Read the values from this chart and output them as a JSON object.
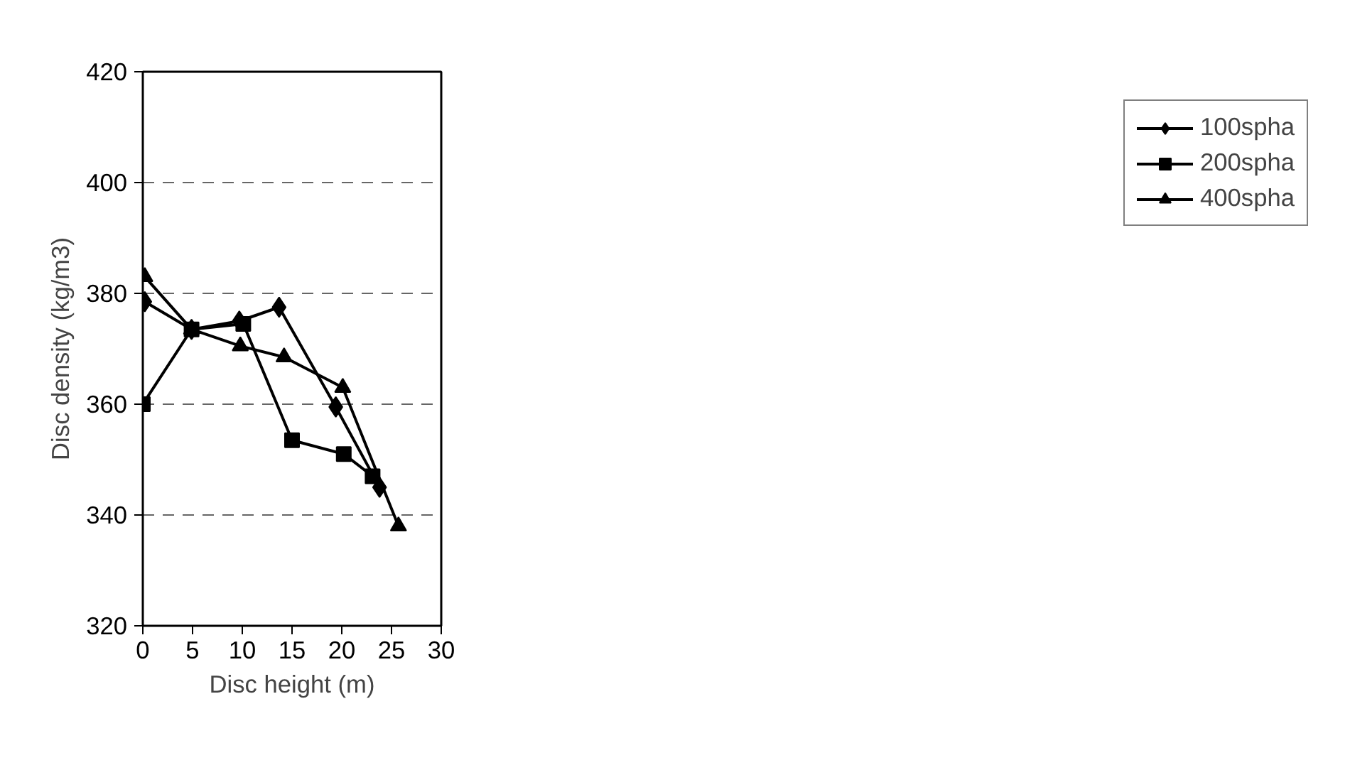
{
  "chart_data": {
    "type": "line",
    "xlabel": "Disc height (m)",
    "ylabel": "Disc density (kg/m3)",
    "xlim": [
      0,
      30
    ],
    "xticks": [
      0,
      5,
      10,
      15,
      20,
      25,
      30
    ],
    "ylim": [
      320,
      420
    ],
    "yticks": [
      320,
      340,
      360,
      380,
      400,
      420
    ],
    "grid": "y",
    "legend": "right",
    "line_style": "solid",
    "series": [
      {
        "name": "100spha",
        "color": "#000000",
        "marker": "diamond",
        "x": [
          0.2,
          4.9,
          9.7,
          13.7,
          19.4,
          23.8
        ],
        "values": [
          378.5,
          373.5,
          375,
          377.5,
          359.5,
          345
        ]
      },
      {
        "name": "200spha",
        "color": "#000000",
        "marker": "square",
        "x": [
          0,
          4.9,
          10.1,
          15,
          20.2,
          23.1
        ],
        "values": [
          360,
          373.5,
          374.5,
          353.5,
          351,
          347
        ]
      },
      {
        "name": "400spha",
        "color": "#000000",
        "marker": "triangle",
        "x": [
          0.2,
          4.9,
          9.8,
          14.2,
          20.1,
          25.7
        ],
        "values": [
          383,
          373.5,
          370.5,
          368.5,
          363,
          338
        ]
      }
    ]
  }
}
